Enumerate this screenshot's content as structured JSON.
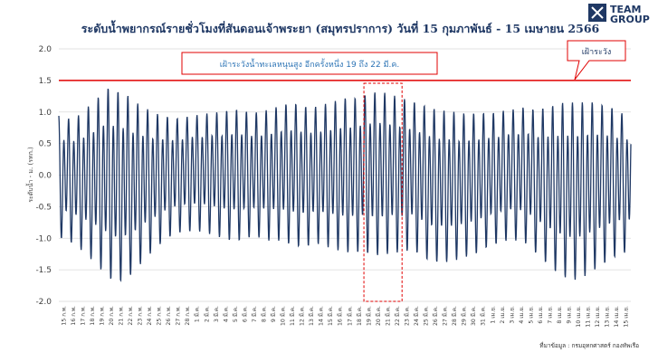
{
  "chart_data": {
    "type": "line",
    "title": "ระดับน้ำพยากรณ์รายชั่วโมงที่สันดอนเจ้าพระยา (สมุทรปราการ) วันที่ 15 กุมภาพันธ์ - 15 เมษายน 2566",
    "ylabel": "ระดับน้ำ - ม. (รทก.)",
    "xlabel": "",
    "ylim": [
      -2.0,
      2.0
    ],
    "yticks": [
      "2.0",
      "1.5",
      "1.0",
      "0.5",
      "0.0",
      "-0.5",
      "-1.0",
      "-1.5",
      "-2.0"
    ],
    "grid": "horizontal",
    "line_color": "#1f3864",
    "threshold": {
      "value": 1.5,
      "label": "เฝ้าระวัง",
      "color": "#e00000"
    },
    "highlight": {
      "from_date": "19 มี.ค.",
      "to_date": "22 มี.ค.",
      "color": "#e00000"
    },
    "annotation": "เฝ้าระวังน้ำทะเลหนุนสูง อีกครั้งหนึ่ง 19 ถึง 22 มี.ค.",
    "x": [
      "15 ก.พ.",
      "16 ก.พ.",
      "17 ก.พ.",
      "18 ก.พ.",
      "19 ก.พ.",
      "20 ก.พ.",
      "21 ก.พ.",
      "22 ก.พ.",
      "23 ก.พ.",
      "24 ก.พ.",
      "25 ก.พ.",
      "26 ก.พ.",
      "27 ก.พ.",
      "28 ก.พ.",
      "1 มี.ค.",
      "2 มี.ค.",
      "3 มี.ค.",
      "4 มี.ค.",
      "5 มี.ค.",
      "6 มี.ค.",
      "7 มี.ค.",
      "8 มี.ค.",
      "9 มี.ค.",
      "10 มี.ค.",
      "11 มี.ค.",
      "12 มี.ค.",
      "13 มี.ค.",
      "14 มี.ค.",
      "15 มี.ค.",
      "16 มี.ค.",
      "17 มี.ค.",
      "18 มี.ค.",
      "19 มี.ค.",
      "20 มี.ค.",
      "21 มี.ค.",
      "22 มี.ค.",
      "23 มี.ค.",
      "24 มี.ค.",
      "25 มี.ค.",
      "26 มี.ค.",
      "27 มี.ค.",
      "28 มี.ค.",
      "29 มี.ค.",
      "30 มี.ค.",
      "31 มี.ค.",
      "1 เม.ย.",
      "2 เม.ย.",
      "3 เม.ย.",
      "4 เม.ย.",
      "5 เม.ย.",
      "6 เม.ย.",
      "7 เม.ย.",
      "8 เม.ย.",
      "9 เม.ย.",
      "10 เม.ย.",
      "11 เม.ย.",
      "12 เม.ย.",
      "13 เม.ย.",
      "14 เม.ย.",
      "15 เม.ย."
    ],
    "series": [
      {
        "daily_high": [
          1.05,
          1.0,
          1.05,
          1.2,
          1.35,
          1.55,
          1.5,
          1.45,
          1.3,
          1.2,
          1.1,
          1.05,
          1.0,
          1.0,
          1.05,
          1.05,
          1.1,
          1.1,
          1.15,
          1.15,
          1.1,
          1.1,
          1.15,
          1.2,
          1.25,
          1.25,
          1.2,
          1.2,
          1.25,
          1.3,
          1.35,
          1.35,
          1.4,
          1.45,
          1.45,
          1.4,
          1.35,
          1.3,
          1.25,
          1.2,
          1.15,
          1.15,
          1.1,
          1.1,
          1.1,
          1.1,
          1.1,
          1.15,
          1.15,
          1.2,
          1.15,
          1.2,
          1.25,
          1.3,
          1.3,
          1.3,
          1.3,
          1.25,
          1.2,
          1.1
        ],
        "daily_low": [
          -1.05,
          -1.1,
          -1.2,
          -1.35,
          -1.5,
          -1.7,
          -1.8,
          -1.75,
          -1.6,
          -1.4,
          -1.25,
          -1.1,
          -1.0,
          -0.95,
          -0.95,
          -0.95,
          -1.0,
          -1.05,
          -1.1,
          -1.1,
          -1.05,
          -1.05,
          -1.1,
          -1.1,
          -1.15,
          -1.2,
          -1.2,
          -1.15,
          -1.2,
          -1.25,
          -1.3,
          -1.3,
          -1.3,
          -1.35,
          -1.35,
          -1.3,
          -1.3,
          -1.25,
          -1.35,
          -1.45,
          -1.45,
          -1.45,
          -1.4,
          -1.35,
          -1.3,
          -1.2,
          -1.15,
          -1.1,
          -1.1,
          -1.15,
          -1.3,
          -1.45,
          -1.6,
          -1.7,
          -1.75,
          -1.7,
          -1.6,
          -1.5,
          -1.4,
          -1.3
        ]
      }
    ]
  },
  "logo": {
    "line1": "TEAM",
    "line2": "GROUP"
  },
  "source": "ที่มาข้อมูล : กรมอุทกศาสตร์ กองทัพเรือ"
}
